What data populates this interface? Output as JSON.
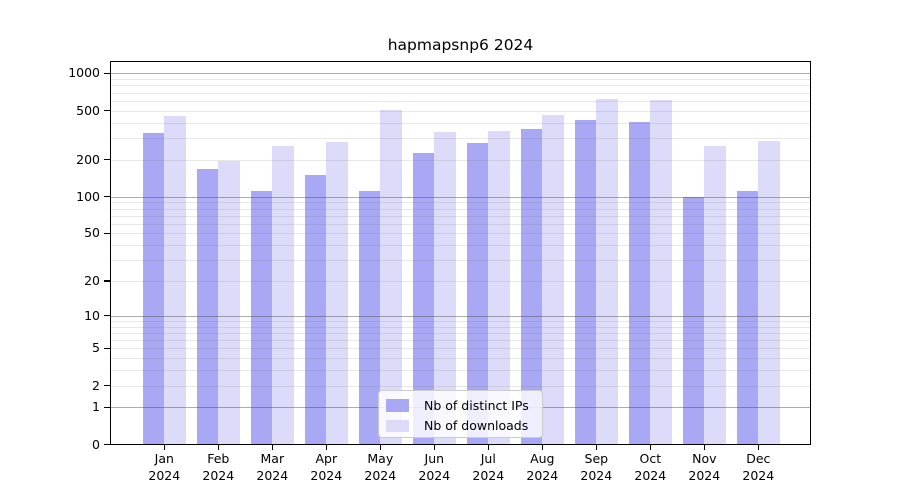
{
  "chart_data": {
    "type": "bar",
    "title": "hapmapsnp6 2024",
    "categories": [
      "Jan",
      "Feb",
      "Mar",
      "Apr",
      "May",
      "Jun",
      "Jul",
      "Aug",
      "Sep",
      "Oct",
      "Nov",
      "Dec"
    ],
    "category_year": "2024",
    "series": [
      {
        "name": "Nb of distinct IPs",
        "color": "#a8a8f4",
        "values": [
          330,
          167,
          111,
          149,
          111,
          225,
          274,
          356,
          421,
          407,
          100,
          111
        ]
      },
      {
        "name": "Nb of downloads",
        "color": "#dcdcfa",
        "values": [
          450,
          197,
          259,
          280,
          503,
          334,
          343,
          462,
          623,
          611,
          260,
          282
        ]
      }
    ],
    "yscale": "log1p",
    "yticks": [
      0,
      1,
      2,
      5,
      10,
      20,
      50,
      100,
      200,
      500,
      1000
    ],
    "ytick_labels": [
      "0",
      "1",
      "2",
      "5",
      "10",
      "20",
      "50",
      "100",
      "200",
      "500",
      "1000"
    ],
    "ylim": [
      0,
      1224
    ],
    "xlabel": "",
    "ylabel": "",
    "grid": "on",
    "grid_major_at": [
      1,
      10,
      100,
      1000
    ],
    "legend_position": "lower center",
    "colors": {
      "background": "#ffffff",
      "axis": "#000000",
      "major_grid": "#b0b0b0",
      "minor_grid": "#e8e8e8",
      "distinct_ips_bar": "#a8a8f4",
      "downloads_bar": "#dcdcfa"
    }
  }
}
